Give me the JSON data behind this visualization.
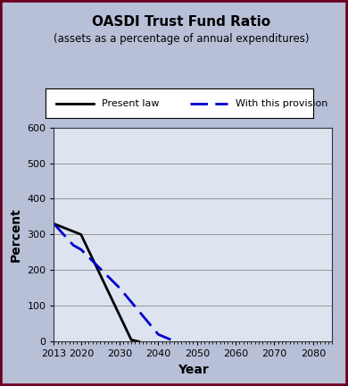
{
  "title": "OASDI Trust Fund Ratio",
  "subtitle": "(assets as a percentage of annual expenditures)",
  "xlabel": "Year",
  "ylabel": "Percent",
  "xlim": [
    2013,
    2085
  ],
  "ylim": [
    0,
    600
  ],
  "xticks": [
    2013,
    2020,
    2030,
    2040,
    2050,
    2060,
    2070,
    2080
  ],
  "yticks": [
    0,
    100,
    200,
    300,
    400,
    500,
    600
  ],
  "plot_bg_color": "#dde4f0",
  "outer_bg": "#b8c0d8",
  "border_color": "#6b0020",
  "present_law": {
    "x": [
      2013,
      2020,
      2033,
      2035
    ],
    "y": [
      330,
      300,
      5,
      0
    ],
    "color": "#000000",
    "linestyle": "solid",
    "linewidth": 2,
    "label": "Present law"
  },
  "provision": {
    "x": [
      2013,
      2018,
      2020,
      2030,
      2040,
      2044,
      2045
    ],
    "y": [
      330,
      270,
      258,
      150,
      20,
      2,
      0
    ],
    "color": "#0000cc",
    "linestyle": "dashed",
    "linewidth": 2,
    "label": "With this provision"
  }
}
